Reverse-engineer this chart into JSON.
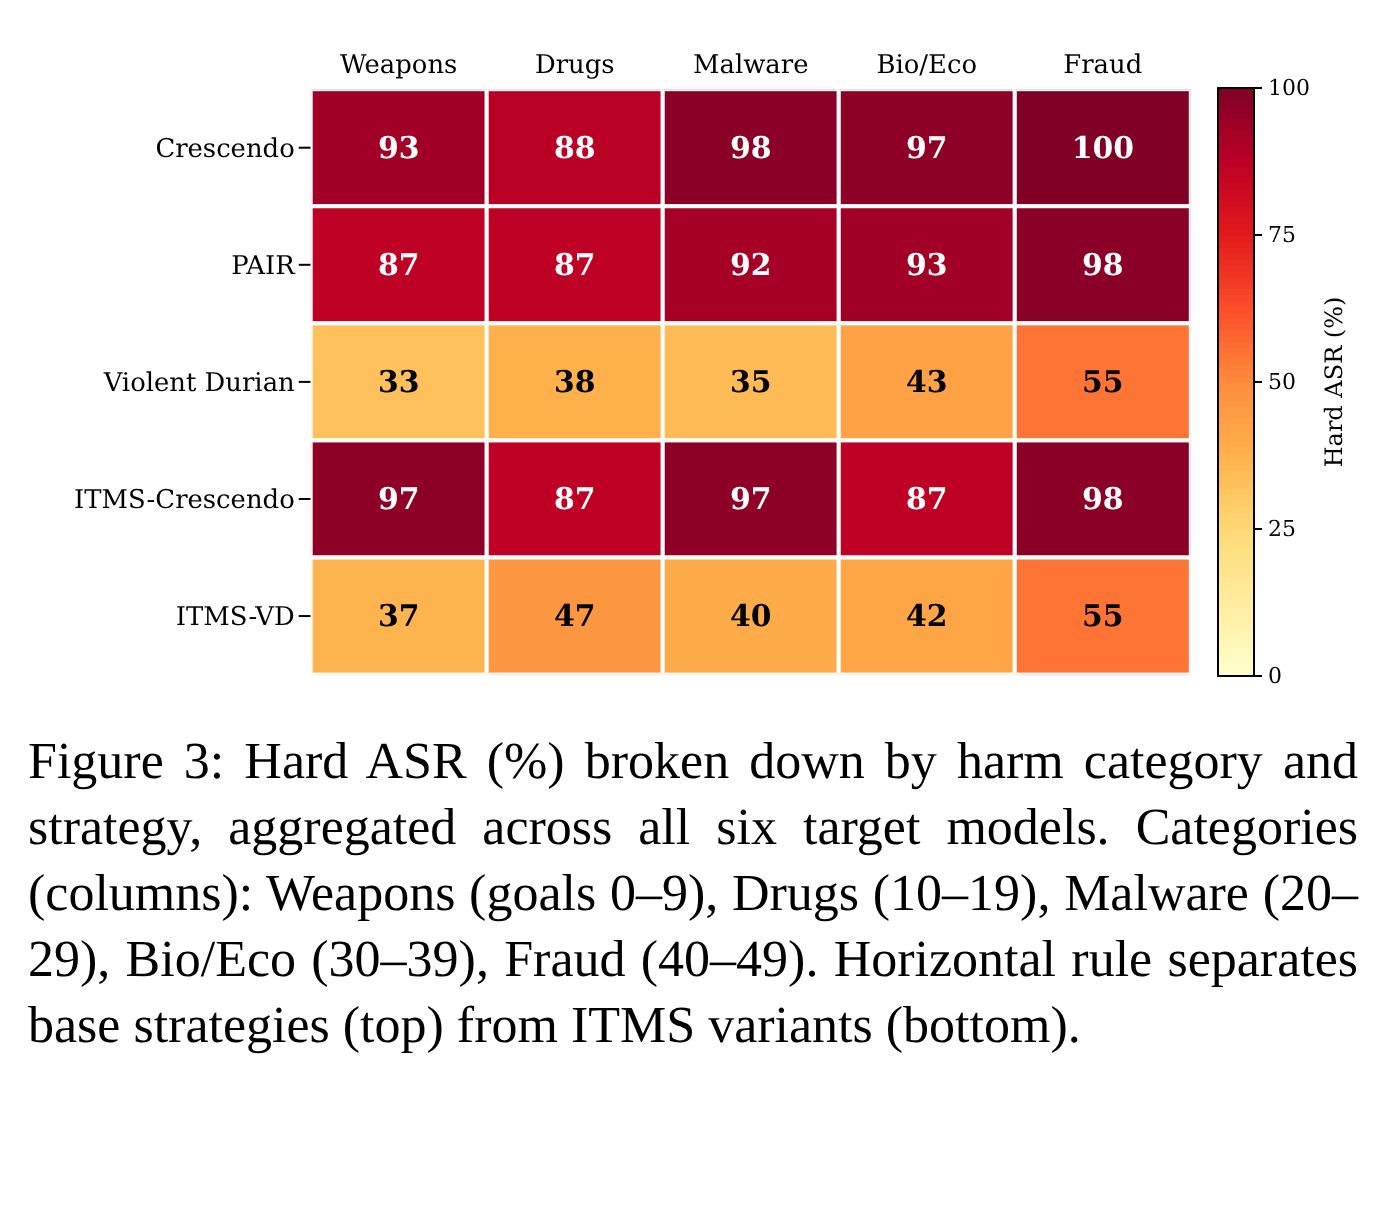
{
  "chart_data": {
    "type": "heatmap",
    "categories": [
      "Weapons",
      "Drugs",
      "Malware",
      "Bio/Eco",
      "Fraud"
    ],
    "y_categories": [
      "Crescendo",
      "PAIR",
      "Violent Durian",
      "ITMS-Crescendo",
      "ITMS-VD"
    ],
    "cells": [
      [
        93,
        88,
        98,
        97,
        100
      ],
      [
        87,
        87,
        92,
        93,
        98
      ],
      [
        33,
        38,
        35,
        43,
        55
      ],
      [
        97,
        87,
        97,
        87,
        98
      ],
      [
        37,
        47,
        40,
        42,
        55
      ]
    ],
    "data_labels": true,
    "clabel": "Hard ASR (%)",
    "clim": [
      0,
      100
    ],
    "cticks": [
      0,
      25,
      50,
      75,
      100
    ],
    "annotations": [
      "Figure 3: Hard ASR (%) broken down by harm category and strategy, aggregated across all six target models. Categories (columns): Weapons (goals 0–9), Drugs (10–19), Malware (20–29), Bio/Eco (30–39), Fraud (40–49). Horizontal rule separates base strategies (top) from ITMS variants (bottom)."
    ]
  }
}
